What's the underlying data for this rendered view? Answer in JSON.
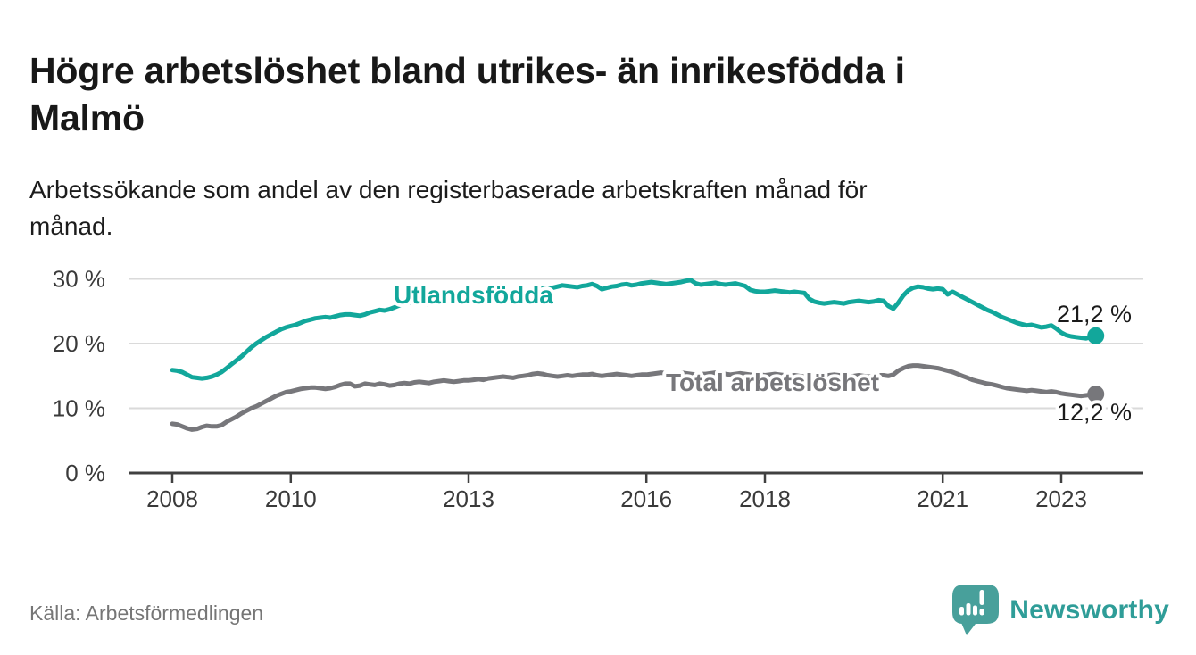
{
  "page": {
    "title_lines": [
      "Högre arbetslöshet bland utrikes- än inrikesfödda i",
      "Malmö"
    ],
    "subtitle_lines": [
      "Arbetssökande som andel av den registerbaserade arbetskraften månad för",
      "månad."
    ],
    "source": "Källa: Arbetsförmedlingen",
    "brand": {
      "name": "Newsworthy",
      "icon": "speech-bubble-bar-chart-icon"
    }
  },
  "colors": {
    "accent_teal": "#12a79b",
    "series_gray": "#77777b",
    "logo_teal": "#48a09b",
    "logo_text_teal": "#2f9d98",
    "title_text": "#181818",
    "tick_label": "#3a3a3a",
    "value_label": "#1a1a1a",
    "source_text": "#767676",
    "gridline": "#dadada",
    "axis_line": "#404040",
    "background": "#ffffff"
  },
  "chart_data": {
    "type": "line",
    "title": "Högre arbetslöshet bland utrikes- än inrikesfödda i Malmö",
    "subtitle": "Arbetssökande som andel av den registerbaserade arbetskraften månad för månad.",
    "x_unit": "month",
    "x_start_year": 2008,
    "x_tick_years": [
      2008,
      2010,
      2013,
      2016,
      2018,
      2021,
      2023
    ],
    "y_ticks": [
      0,
      10,
      20,
      30
    ],
    "y_tick_suffix": " %",
    "ylim": [
      0,
      31
    ],
    "grid": "horizontal",
    "legend_position": "inline-labels",
    "series": [
      {
        "name": "Utlandsfödda",
        "color": "#12a79b",
        "end_label": "21,2 %",
        "last_value": 21.2,
        "values": [
          15.9,
          15.8,
          15.6,
          15.2,
          14.8,
          14.7,
          14.6,
          14.7,
          14.9,
          15.2,
          15.6,
          16.2,
          16.8,
          17.4,
          18.0,
          18.7,
          19.4,
          20.0,
          20.5,
          21.0,
          21.4,
          21.8,
          22.2,
          22.5,
          22.7,
          22.9,
          23.2,
          23.5,
          23.7,
          23.9,
          24.0,
          24.1,
          24.0,
          24.2,
          24.4,
          24.5,
          24.5,
          24.4,
          24.3,
          24.5,
          24.8,
          25.0,
          25.2,
          25.1,
          25.3,
          25.6,
          25.9,
          26.2,
          26.3,
          26.5,
          26.1,
          26.0,
          26.2,
          26.4,
          26.6,
          26.8,
          26.7,
          26.5,
          26.6,
          26.8,
          27.0,
          27.2,
          27.4,
          27.3,
          27.5,
          27.7,
          27.9,
          28.0,
          27.9,
          27.8,
          28.0,
          28.2,
          28.3,
          28.5,
          28.6,
          28.5,
          28.4,
          28.6,
          28.8,
          29.0,
          28.9,
          28.8,
          28.7,
          28.9,
          29.0,
          29.2,
          28.9,
          28.4,
          28.6,
          28.8,
          28.9,
          29.1,
          29.2,
          29.0,
          29.1,
          29.3,
          29.4,
          29.5,
          29.4,
          29.3,
          29.2,
          29.3,
          29.4,
          29.5,
          29.7,
          29.8,
          29.3,
          29.1,
          29.2,
          29.3,
          29.4,
          29.2,
          29.1,
          29.2,
          29.3,
          29.1,
          28.9,
          28.3,
          28.1,
          28.0,
          28.0,
          28.1,
          28.2,
          28.1,
          28.0,
          27.9,
          28.0,
          27.9,
          27.8,
          26.9,
          26.5,
          26.3,
          26.2,
          26.3,
          26.4,
          26.3,
          26.2,
          26.4,
          26.5,
          26.6,
          26.5,
          26.4,
          26.5,
          26.7,
          26.6,
          25.8,
          25.4,
          26.3,
          27.4,
          28.2,
          28.6,
          28.8,
          28.7,
          28.5,
          28.4,
          28.5,
          28.4,
          27.6,
          28.0,
          27.6,
          27.2,
          26.8,
          26.4,
          26.0,
          25.6,
          25.2,
          24.9,
          24.5,
          24.1,
          23.8,
          23.5,
          23.2,
          23.0,
          22.8,
          22.9,
          22.7,
          22.5,
          22.6,
          22.8,
          22.3,
          21.7,
          21.3,
          21.1,
          21.0,
          20.9,
          20.8,
          21.0,
          21.2
        ]
      },
      {
        "name": "Total arbetslöshet",
        "color": "#77777b",
        "end_label": "12,2 %",
        "last_value": 12.2,
        "values": [
          7.6,
          7.5,
          7.2,
          6.9,
          6.7,
          6.8,
          7.1,
          7.3,
          7.2,
          7.2,
          7.4,
          7.9,
          8.3,
          8.7,
          9.2,
          9.6,
          10.0,
          10.3,
          10.7,
          11.1,
          11.5,
          11.9,
          12.2,
          12.5,
          12.6,
          12.8,
          13.0,
          13.1,
          13.2,
          13.2,
          13.1,
          13.0,
          13.1,
          13.3,
          13.6,
          13.8,
          13.8,
          13.4,
          13.5,
          13.8,
          13.7,
          13.6,
          13.8,
          13.7,
          13.5,
          13.6,
          13.8,
          13.9,
          13.8,
          14.0,
          14.1,
          14.0,
          13.9,
          14.1,
          14.2,
          14.3,
          14.2,
          14.1,
          14.2,
          14.3,
          14.3,
          14.4,
          14.5,
          14.4,
          14.6,
          14.7,
          14.8,
          14.9,
          14.8,
          14.7,
          14.9,
          15.0,
          15.1,
          15.3,
          15.4,
          15.3,
          15.1,
          15.0,
          14.9,
          15.0,
          15.1,
          15.0,
          15.1,
          15.2,
          15.2,
          15.3,
          15.1,
          15.0,
          15.1,
          15.2,
          15.3,
          15.2,
          15.1,
          15.0,
          15.1,
          15.2,
          15.2,
          15.3,
          15.4,
          15.5,
          15.4,
          15.3,
          15.4,
          15.5,
          15.4,
          15.3,
          15.2,
          15.3,
          15.3,
          15.4,
          15.5,
          15.4,
          15.3,
          15.2,
          15.3,
          15.4,
          15.3,
          15.2,
          15.1,
          15.2,
          15.1,
          15.2,
          15.3,
          15.2,
          15.1,
          15.0,
          15.1,
          15.0,
          14.9,
          14.8,
          14.9,
          15.0,
          15.0,
          15.1,
          15.2,
          15.1,
          15.0,
          14.9,
          15.0,
          15.1,
          15.0,
          14.9,
          15.0,
          15.1,
          15.1,
          15.0,
          15.2,
          15.8,
          16.2,
          16.5,
          16.6,
          16.6,
          16.5,
          16.4,
          16.3,
          16.2,
          16.0,
          15.8,
          15.6,
          15.3,
          15.0,
          14.7,
          14.4,
          14.2,
          14.0,
          13.8,
          13.7,
          13.5,
          13.3,
          13.1,
          13.0,
          12.9,
          12.8,
          12.7,
          12.8,
          12.7,
          12.6,
          12.5,
          12.6,
          12.5,
          12.3,
          12.2,
          12.1,
          12.0,
          11.9,
          12.0,
          12.1,
          12.2
        ]
      }
    ]
  }
}
